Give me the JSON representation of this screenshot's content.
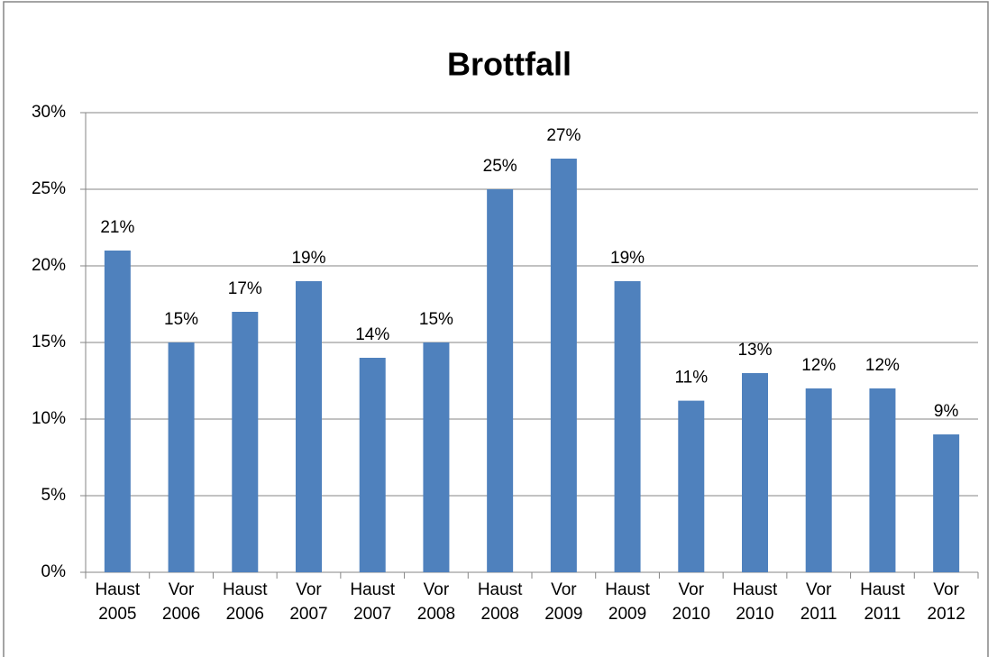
{
  "chart_data": {
    "type": "bar",
    "title": "Brottfall",
    "categories": [
      "Haust 2005",
      "Vor 2006",
      "Haust 2006",
      "Vor 2007",
      "Haust 2007",
      "Vor 2008",
      "Haust 2008",
      "Vor 2009",
      "Haust 2009",
      "Vor 2010",
      "Haust 2010",
      "Vor 2011",
      "Haust 2011",
      "Vor 2012"
    ],
    "values": [
      21,
      15,
      17,
      19,
      14,
      15,
      25,
      27,
      19,
      11.2,
      13,
      12,
      12,
      9
    ],
    "value_labels": [
      "21%",
      "15%",
      "17%",
      "19%",
      "14%",
      "15%",
      "25%",
      "27%",
      "19%",
      "11%",
      "13%",
      "12%",
      "12%",
      "9%"
    ],
    "color": "#4f81bd",
    "ylim": [
      0,
      30
    ],
    "yticks": [
      {
        "value": 0,
        "label": "0%"
      },
      {
        "value": 5,
        "label": "5%"
      },
      {
        "value": 10,
        "label": "10%"
      },
      {
        "value": 15,
        "label": "15%"
      },
      {
        "value": 20,
        "label": "20%"
      },
      {
        "value": 25,
        "label": "25%"
      },
      {
        "value": 30,
        "label": "30%"
      }
    ],
    "grid": true
  }
}
